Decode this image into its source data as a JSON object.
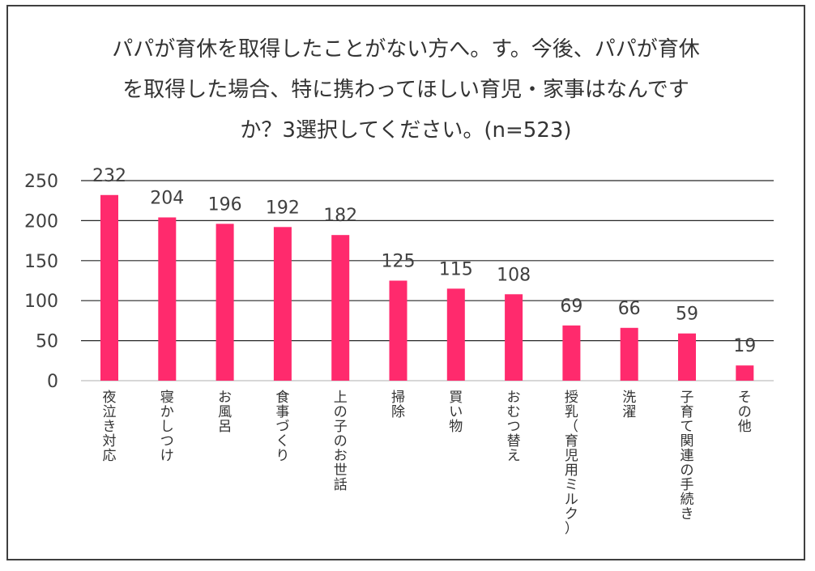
{
  "chart_data": {
    "type": "bar",
    "title_lines": [
      "パパが育休を取得したことがない方へ。す。今後、パパが育休",
      "を取得した場合、特に携わってほしい育児・家事はなんです",
      "か？3選択してください。(n=523)"
    ],
    "categories": [
      "夜泣き対応",
      "寝かしつけ",
      "お風呂",
      "食事づくり",
      "上の子のお世話",
      "掃除",
      "買い物",
      "おむつ替え",
      "授乳（育児用ミルク）",
      "洗濯",
      "子育て関連の手続き",
      "その他"
    ],
    "values": [
      232,
      204,
      196,
      192,
      182,
      125,
      115,
      108,
      69,
      66,
      59,
      19
    ],
    "yticks": [
      0,
      50,
      100,
      150,
      200,
      250
    ],
    "ylim": [
      0,
      250
    ],
    "grid": true,
    "bar_color": "#ff2a6d",
    "grid_color": "#262626"
  }
}
